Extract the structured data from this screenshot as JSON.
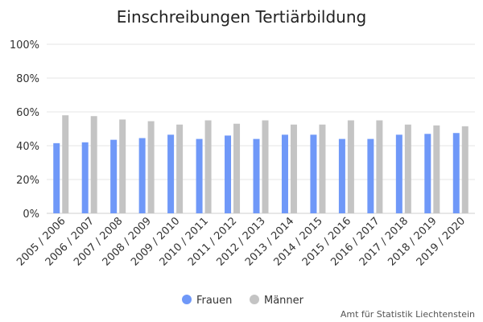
{
  "chart_data": {
    "type": "bar",
    "title": "Einschreibungen Tertiärbildung",
    "xlabel": "",
    "ylabel": "",
    "ylim": [
      0,
      100
    ],
    "yticks": [
      "0%",
      "20%",
      "40%",
      "60%",
      "80%",
      "100%"
    ],
    "grid": true,
    "legend_position": "bottom",
    "categories": [
      "2005 / 2006",
      "2006 / 2007",
      "2007 / 2008",
      "2008 / 2009",
      "2009 / 2010",
      "2010 / 2011",
      "2011 / 2012",
      "2012 / 2013",
      "2013 / 2014",
      "2014 / 2015",
      "2015 / 2016",
      "2016 / 2017",
      "2017 / 2018",
      "2018 / 2019",
      "2019 / 2020"
    ],
    "series": [
      {
        "name": "Frauen",
        "color": "#6f98f8",
        "values": [
          41.5,
          42,
          43.5,
          44.5,
          46.5,
          44,
          46,
          44,
          46.5,
          46.5,
          44,
          44,
          46.5,
          47,
          47.5
        ]
      },
      {
        "name": "Männer",
        "color": "#c4c4c4",
        "values": [
          58,
          57.5,
          55.5,
          54.5,
          52.5,
          55,
          53,
          55,
          52.5,
          52.5,
          55,
          55,
          52.5,
          52,
          51.5
        ]
      }
    ],
    "source": "Amt für Statistik Liechtenstein"
  }
}
